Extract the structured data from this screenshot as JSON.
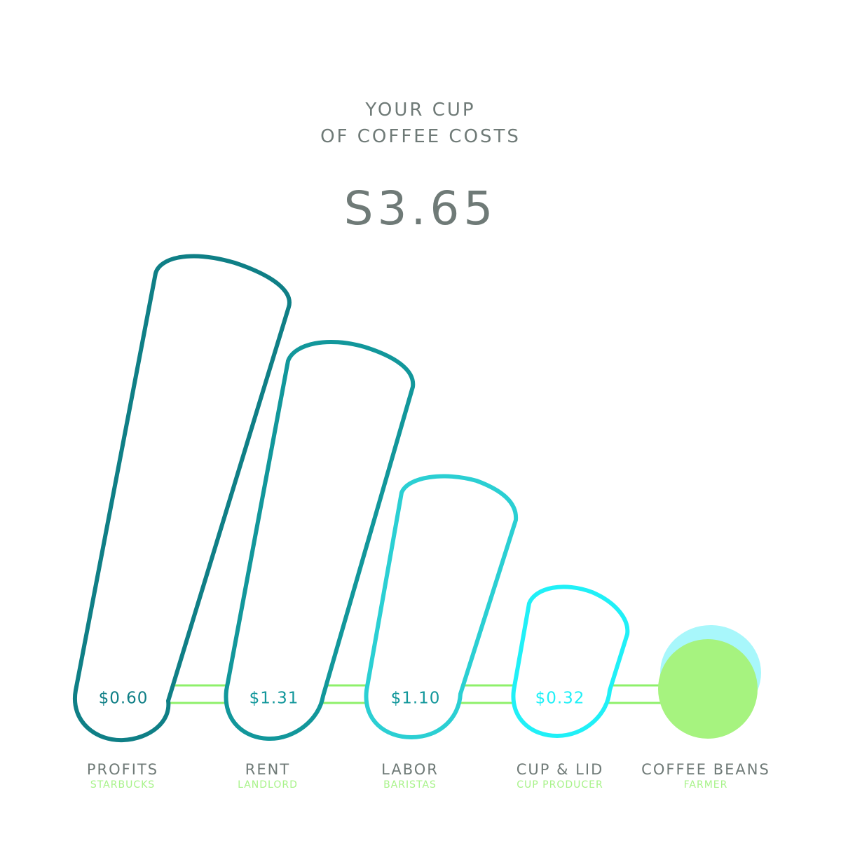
{
  "header": {
    "title_line_1": "YOUR CUP",
    "title_line_2": "OF COFFEE COSTS",
    "total": "S3.65"
  },
  "colors": {
    "title_text": "#6f7a77",
    "label_text": "#6f7a77",
    "sublabel_text": "#a8f38a",
    "connector": "#8ef06a",
    "beans_green": "#a6f37f",
    "beans_cyan": "#a8f7fb"
  },
  "chart_data": {
    "type": "bar",
    "categories": [
      "PROFITS",
      "RENT",
      "LABOR",
      "CUP & LID",
      "COFFEE BEANS"
    ],
    "sublabels": [
      "STARBUCKS",
      "LANDLORD",
      "BARISTAS",
      "CUP PRODUCER",
      "FARMER"
    ],
    "value_labels": [
      "$0.60",
      "$1.31",
      "$1.10",
      "$0.32",
      ""
    ],
    "values": [
      0.6,
      1.31,
      1.1,
      0.32,
      null
    ],
    "series_colors": [
      "#0f7f86",
      "#12979b",
      "#2bcfd3",
      "#20f0f7",
      "#a6f37f"
    ],
    "value_label_colors": [
      "#0f7f86",
      "#12979b",
      "#12979b",
      "#20f0f7",
      ""
    ]
  }
}
